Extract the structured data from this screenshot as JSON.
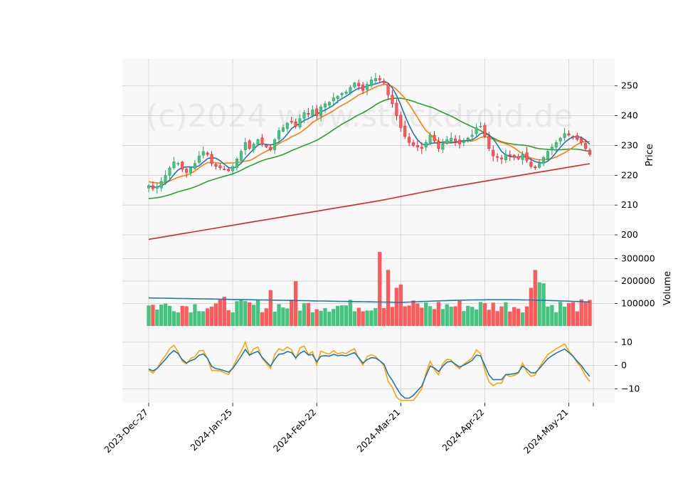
{
  "watermark": "(c)2024 www.stockdroid.de",
  "colors": {
    "up": "#26a269",
    "up_fill": "#44c47e",
    "down": "#e01b24",
    "down_fill": "#ff5a5a",
    "ma_short": "#1f77b4",
    "ma_mid": "#ff7f0e",
    "ma_long": "#2ca02c",
    "ma_200": "#d62728",
    "vol_ma": "#1f77b4",
    "osc_a": "#1f77b4",
    "osc_b": "#ffa500",
    "panel_bg": "#f8f8f8",
    "grid": "#d0d0d0"
  },
  "chart_data": {
    "type": "candlestick",
    "panels": [
      {
        "name": "price",
        "ylabel": "Price",
        "yticks": [
          200,
          210,
          220,
          230,
          240,
          250
        ],
        "ylim": [
          195,
          259
        ]
      },
      {
        "name": "volume",
        "ylabel": "Volume",
        "yticks": [
          100000,
          200000,
          300000
        ],
        "ytick_labels": [
          "100000",
          "200000",
          "300000"
        ],
        "ylim": [
          0,
          340000
        ]
      },
      {
        "name": "oscillator",
        "ylabel": "",
        "yticks": [
          -10,
          0,
          10
        ],
        "ytick_labels": [
          "−10",
          "0",
          "10"
        ],
        "ylim": [
          -16,
          17
        ]
      }
    ],
    "x_ticks": [
      {
        "i": 0,
        "label": "2023-Dec-27"
      },
      {
        "i": 20,
        "label": "2024-Jan-25"
      },
      {
        "i": 40,
        "label": "2024-Feb-22"
      },
      {
        "i": 60,
        "label": "2024-Mar-21"
      },
      {
        "i": 80,
        "label": "2024-Apr-22"
      },
      {
        "i": 100,
        "label": "2024-May-21"
      }
    ],
    "closes": [
      216.5,
      215.5,
      216.2,
      218,
      220,
      222.5,
      224.5,
      224,
      222,
      221,
      222.5,
      224,
      226.5,
      228,
      227,
      224,
      223,
      222.5,
      222,
      221.5,
      223,
      225.5,
      228,
      231,
      229,
      230.5,
      232,
      230.5,
      229.5,
      228.5,
      232,
      235,
      236,
      237.5,
      238,
      236.5,
      239,
      241,
      240.5,
      242,
      240,
      243,
      244,
      244.5,
      246,
      246.5,
      247.5,
      248,
      249.5,
      251,
      250,
      248.5,
      250.5,
      252,
      252.5,
      252,
      251,
      247,
      244,
      240,
      236,
      233,
      231,
      230,
      229.5,
      229,
      231,
      233.5,
      231.5,
      229,
      230.5,
      232,
      232.5,
      231.5,
      230.5,
      231.5,
      232.5,
      233.5,
      236,
      236.5,
      233,
      229,
      226.5,
      226,
      225.5,
      227,
      226.5,
      226,
      225.5,
      227,
      225,
      223,
      222.5,
      224,
      226,
      228,
      229.5,
      231,
      232.5,
      234,
      233.5,
      233,
      232,
      231,
      229,
      227
    ]
  }
}
